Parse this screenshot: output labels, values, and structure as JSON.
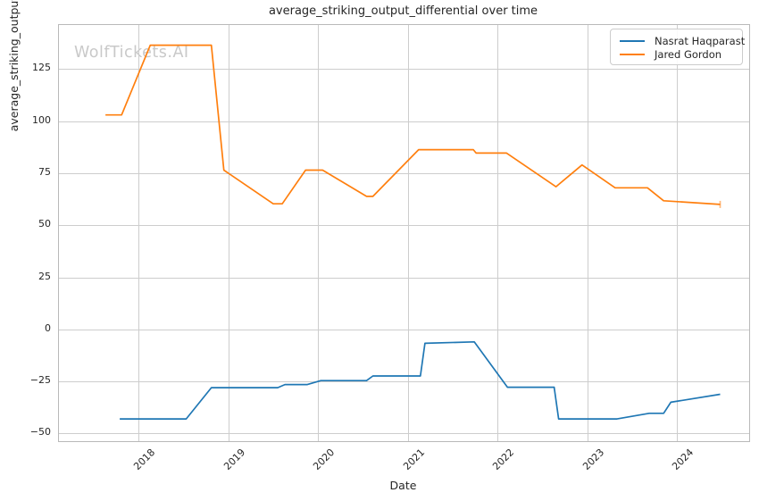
{
  "title": "average_striking_output_differential over time",
  "watermark": "WolfTickets.AI",
  "legend": {
    "entries": [
      {
        "label": "Nasrat Haqparast",
        "color": "#1f77b4"
      },
      {
        "label": "Jared Gordon",
        "color": "#ff7f0e"
      }
    ]
  },
  "chart_data": {
    "type": "line",
    "title": "average_striking_output_differential over time",
    "xlabel": "Date",
    "ylabel": "average_striking_output_differential",
    "x_ticks": [
      2018,
      2019,
      2020,
      2021,
      2022,
      2023,
      2024
    ],
    "y_ticks": [
      125,
      100,
      75,
      50,
      25,
      0,
      -25,
      -50
    ],
    "xlim": [
      2017.112,
      2024.803
    ],
    "ylim": [
      -53.7,
      146.2
    ],
    "grid": true,
    "grid_color": "#cdcdcd",
    "legend_position": "upper right",
    "series": [
      {
        "name": "Nasrat Haqparast",
        "color": "#1f77b4",
        "end_cap": false,
        "points": [
          [
            2017.79,
            -43.0
          ],
          [
            2018.53,
            -43.0
          ],
          [
            2018.81,
            -28.0
          ],
          [
            2019.55,
            -28.0
          ],
          [
            2019.63,
            -26.5
          ],
          [
            2019.88,
            -26.5
          ],
          [
            2020.03,
            -24.6
          ],
          [
            2020.54,
            -24.6
          ],
          [
            2020.61,
            -22.4
          ],
          [
            2021.14,
            -22.4
          ],
          [
            2021.19,
            -6.7
          ],
          [
            2021.74,
            -6.0
          ],
          [
            2022.11,
            -27.8
          ],
          [
            2022.63,
            -27.8
          ],
          [
            2022.68,
            -43.0
          ],
          [
            2023.33,
            -43.0
          ],
          [
            2023.69,
            -40.3
          ],
          [
            2023.85,
            -40.3
          ],
          [
            2023.93,
            -35.0
          ],
          [
            2024.48,
            -31.2
          ]
        ]
      },
      {
        "name": "Jared Gordon",
        "color": "#ff7f0e",
        "end_cap": true,
        "points": [
          [
            2017.63,
            103.0
          ],
          [
            2017.81,
            103.0
          ],
          [
            2018.13,
            136.5
          ],
          [
            2018.81,
            136.5
          ],
          [
            2018.95,
            76.5
          ],
          [
            2019.5,
            60.3
          ],
          [
            2019.6,
            60.3
          ],
          [
            2019.86,
            76.5
          ],
          [
            2020.05,
            76.5
          ],
          [
            2020.54,
            63.9
          ],
          [
            2020.61,
            63.9
          ],
          [
            2021.12,
            86.3
          ],
          [
            2021.73,
            86.3
          ],
          [
            2021.76,
            84.7
          ],
          [
            2022.1,
            84.7
          ],
          [
            2022.65,
            68.5
          ],
          [
            2022.94,
            79.0
          ],
          [
            2023.31,
            68.0
          ],
          [
            2023.67,
            68.0
          ],
          [
            2023.85,
            61.8
          ],
          [
            2024.48,
            60.0
          ]
        ]
      }
    ]
  }
}
